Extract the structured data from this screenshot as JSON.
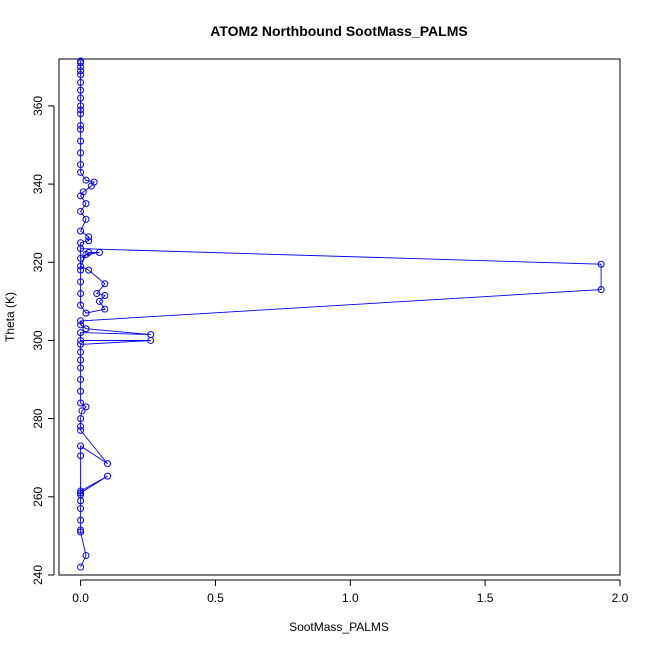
{
  "chart_data": {
    "type": "line",
    "title": "ATOM2 Northbound SootMass_PALMS",
    "xlabel": "SootMass_PALMS",
    "ylabel": "Theta (K)",
    "xlim": [
      -0.08,
      2.0
    ],
    "ylim": [
      240,
      372
    ],
    "xticks": [
      0.0,
      0.5,
      1.0,
      1.5,
      2.0
    ],
    "xtick_labels": [
      "0.0",
      "0.5",
      "1.0",
      "1.5",
      "2.0"
    ],
    "yticks": [
      240,
      260,
      280,
      300,
      320,
      340,
      360
    ],
    "ytick_labels": [
      "240",
      "260",
      "280",
      "300",
      "320",
      "340",
      "360"
    ],
    "grid": false,
    "marker": "open-circle",
    "color": "#0000ff",
    "series": [
      {
        "points": [
          [
            0.0,
            242.0
          ],
          [
            0.02,
            245.0
          ],
          [
            0.0,
            251.0
          ],
          [
            0.0,
            251.5
          ],
          [
            0.0,
            254.0
          ],
          [
            0.0,
            257.0
          ],
          [
            0.0,
            259.0
          ],
          [
            0.0,
            260.5
          ],
          [
            0.0,
            261.5
          ],
          [
            0.1,
            265.3
          ],
          [
            0.0,
            261.0
          ],
          [
            0.0,
            270.5
          ],
          [
            0.0,
            273.0
          ],
          [
            0.1,
            268.5
          ],
          [
            0.0,
            277.0
          ],
          [
            0.0,
            278.0
          ],
          [
            0.0,
            280.0
          ],
          [
            0.005,
            282.0
          ],
          [
            0.02,
            283.0
          ],
          [
            0.0,
            284.0
          ],
          [
            0.0,
            287.0
          ],
          [
            0.0,
            290.0
          ],
          [
            0.0,
            293.0
          ],
          [
            0.0,
            295.0
          ],
          [
            0.0,
            297.0
          ],
          [
            0.0,
            299.0
          ],
          [
            0.26,
            300.0
          ],
          [
            0.0,
            300.0
          ],
          [
            0.0,
            302.0
          ],
          [
            0.26,
            301.5
          ],
          [
            0.02,
            303.0
          ],
          [
            0.0,
            304.0
          ],
          [
            0.0,
            305.0
          ],
          [
            1.93,
            313.0
          ],
          [
            1.93,
            319.5
          ],
          [
            0.0,
            323.5
          ],
          [
            0.0,
            321.0
          ],
          [
            0.03,
            322.5
          ],
          [
            0.07,
            322.5
          ],
          [
            0.02,
            322.0
          ],
          [
            0.0,
            319.0
          ],
          [
            0.03,
            318.0
          ],
          [
            0.09,
            314.5
          ],
          [
            0.06,
            312.0
          ],
          [
            0.09,
            311.5
          ],
          [
            0.07,
            310.0
          ],
          [
            0.09,
            308.0
          ],
          [
            0.02,
            307.0
          ],
          [
            0.0,
            309.0
          ],
          [
            0.0,
            312.0
          ],
          [
            0.0,
            315.0
          ],
          [
            0.0,
            318.0
          ],
          [
            0.0,
            325.0
          ],
          [
            0.03,
            325.5
          ],
          [
            0.03,
            326.5
          ],
          [
            0.0,
            328.0
          ],
          [
            0.02,
            331.0
          ],
          [
            0.0,
            333.0
          ],
          [
            0.02,
            335.0
          ],
          [
            0.0,
            337.0
          ],
          [
            0.01,
            338.0
          ],
          [
            0.04,
            339.5
          ],
          [
            0.05,
            340.5
          ],
          [
            0.02,
            341.0
          ],
          [
            0.0,
            343.0
          ],
          [
            0.0,
            345.0
          ],
          [
            0.0,
            348.0
          ],
          [
            0.0,
            351.0
          ],
          [
            0.0,
            354.0
          ],
          [
            0.0,
            355.0
          ],
          [
            0.0,
            358.0
          ],
          [
            0.0,
            359.0
          ],
          [
            0.0,
            360.0
          ],
          [
            0.0,
            362.0
          ],
          [
            0.0,
            364.0
          ],
          [
            0.0,
            366.0
          ],
          [
            0.0,
            368.0
          ],
          [
            0.0,
            369.0
          ],
          [
            0.0,
            370.0
          ],
          [
            0.0,
            371.0
          ],
          [
            0.0,
            371.5
          ]
        ]
      }
    ]
  }
}
